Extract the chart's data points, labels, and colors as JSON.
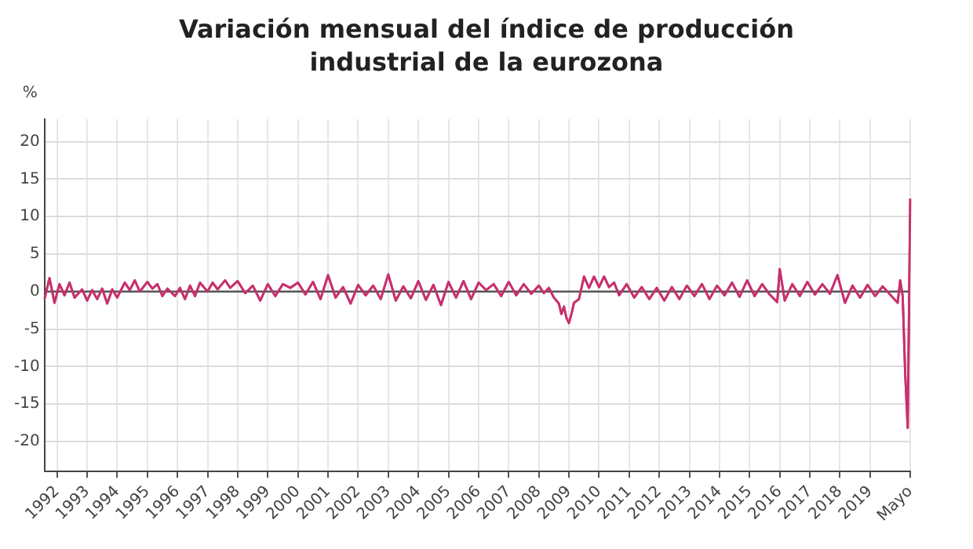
{
  "chart_data": {
    "type": "line",
    "title": "Variación mensual del índice de producción industrial de la eurozona",
    "ylabel": "%",
    "x": [
      "1991-08",
      "1991-10",
      "1991-12",
      "1992-02",
      "1992-04",
      "1992-06",
      "1992-08",
      "1992-11",
      "1993-01",
      "1993-03",
      "1993-05",
      "1993-07",
      "1993-09",
      "1993-11",
      "1994-01",
      "1994-04",
      "1994-06",
      "1994-08",
      "1994-10",
      "1995-01",
      "1995-03",
      "1995-05",
      "1995-07",
      "1995-09",
      "1995-12",
      "1996-02",
      "1996-04",
      "1996-06",
      "1996-08",
      "1996-10",
      "1997-01",
      "1997-03",
      "1997-05",
      "1997-08",
      "1997-10",
      "1998-01",
      "1998-04",
      "1998-07",
      "1998-10",
      "1999-01",
      "1999-04",
      "1999-07",
      "1999-10",
      "2000-01",
      "2000-04",
      "2000-07",
      "2000-10",
      "2001-01",
      "2001-04",
      "2001-07",
      "2001-10",
      "2002-01",
      "2002-04",
      "2002-07",
      "2002-10",
      "2003-01",
      "2003-04",
      "2003-07",
      "2003-10",
      "2004-01",
      "2004-04",
      "2004-07",
      "2004-10",
      "2005-01",
      "2005-04",
      "2005-07",
      "2005-10",
      "2006-01",
      "2006-04",
      "2006-07",
      "2006-10",
      "2007-01",
      "2007-04",
      "2007-07",
      "2007-10",
      "2008-01",
      "2008-03",
      "2008-05",
      "2008-07",
      "2008-09",
      "2008-10",
      "2008-11",
      "2008-12",
      "2009-01",
      "2009-02",
      "2009-03",
      "2009-05",
      "2009-07",
      "2009-09",
      "2009-11",
      "2010-01",
      "2010-03",
      "2010-05",
      "2010-07",
      "2010-09",
      "2010-12",
      "2011-03",
      "2011-06",
      "2011-09",
      "2011-12",
      "2012-03",
      "2012-06",
      "2012-09",
      "2012-12",
      "2013-03",
      "2013-06",
      "2013-09",
      "2013-12",
      "2014-03",
      "2014-06",
      "2014-09",
      "2014-12",
      "2015-03",
      "2015-06",
      "2015-09",
      "2015-12",
      "2016-01",
      "2016-03",
      "2016-06",
      "2016-09",
      "2016-12",
      "2017-03",
      "2017-06",
      "2017-09",
      "2017-12",
      "2018-03",
      "2018-06",
      "2018-09",
      "2018-12",
      "2019-03",
      "2019-06",
      "2019-09",
      "2019-12",
      "2020-01",
      "2020-02",
      "2020-03",
      "2020-04",
      "2020-05"
    ],
    "series": [
      {
        "color": "#c8306e",
        "values": [
          -1.0,
          1.8,
          -1.5,
          1.0,
          -0.5,
          1.2,
          -0.8,
          0.3,
          -1.2,
          0.2,
          -1.0,
          0.4,
          -1.6,
          0.3,
          -0.8,
          1.2,
          0.2,
          1.5,
          0.0,
          1.3,
          0.4,
          1.0,
          -0.6,
          0.4,
          -0.6,
          0.5,
          -1.0,
          0.8,
          -0.6,
          1.2,
          0.0,
          1.2,
          0.3,
          1.5,
          0.5,
          1.4,
          -0.2,
          0.8,
          -1.2,
          1.0,
          -0.6,
          1.0,
          0.5,
          1.2,
          -0.4,
          1.3,
          -1.0,
          2.2,
          -0.8,
          0.6,
          -1.6,
          0.9,
          -0.5,
          0.8,
          -1.0,
          2.3,
          -1.2,
          0.7,
          -0.9,
          1.4,
          -1.1,
          0.9,
          -1.8,
          1.3,
          -0.8,
          1.4,
          -1.0,
          1.2,
          0.2,
          1.0,
          -0.6,
          1.3,
          -0.5,
          1.0,
          -0.3,
          0.8,
          -0.2,
          0.5,
          -0.8,
          -1.6,
          -3.0,
          -2.0,
          -3.5,
          -4.2,
          -3.0,
          -1.5,
          -1.0,
          2.0,
          0.5,
          2.0,
          0.6,
          2.0,
          0.6,
          1.2,
          -0.5,
          1.0,
          -0.8,
          0.6,
          -1.0,
          0.5,
          -1.2,
          0.6,
          -1.0,
          0.8,
          -0.6,
          1.0,
          -1.0,
          0.8,
          -0.5,
          1.2,
          -0.7,
          1.5,
          -0.6,
          1.0,
          -0.4,
          -1.4,
          3.0,
          -1.2,
          1.0,
          -0.6,
          1.3,
          -0.4,
          1.0,
          -0.3,
          2.2,
          -1.5,
          0.8,
          -0.8,
          0.9,
          -0.6,
          0.7,
          -0.4,
          -1.5,
          1.5,
          -0.6,
          -11,
          -18.2,
          12.4
        ]
      }
    ],
    "xlim": [
      "1991-08",
      "2020-05"
    ],
    "xticks": [
      "1992",
      "1993",
      "1994",
      "1995",
      "1996",
      "1997",
      "1998",
      "1999",
      "2000",
      "2001",
      "2002",
      "2003",
      "2004",
      "2005",
      "2006",
      "2007",
      "2008",
      "2009",
      "2010",
      "2011",
      "2012",
      "2013",
      "2014",
      "2015",
      "2016",
      "2017",
      "2018",
      "2019",
      {
        "value": "2020-05",
        "label": "Mayo"
      }
    ],
    "ylim": [
      -24,
      23
    ],
    "yticks": [
      -20,
      -15,
      -10,
      -5,
      0,
      5,
      10,
      15,
      20
    ],
    "grid": true,
    "legend": false,
    "marker": "none",
    "line_style": "solid",
    "ref_lines": [
      {
        "axis": "y",
        "value": 0,
        "color": "#555555"
      }
    ]
  }
}
